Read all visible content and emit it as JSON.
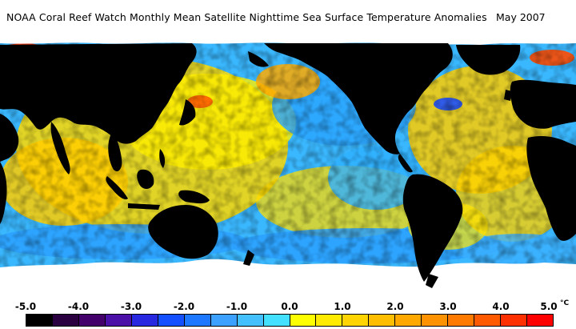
{
  "title": {
    "text": "NOAA Coral Reef Watch Monthly Mean Satellite Nighttime Sea Surface Temperature Anomalies",
    "date": "May 2007"
  },
  "map": {
    "projection": "equirectangular",
    "land_color": "#000000",
    "ice_color": "#ffffff",
    "dominant_features": [
      "warm anomalies (yellow-orange) in North Atlantic and Indian Ocean",
      "cool anomalies (blue) in eastern tropical Pacific and Southern Ocean"
    ]
  },
  "legend": {
    "ticks": [
      "-5.0",
      "-4.0",
      "-3.0",
      "-2.0",
      "-1.0",
      "0.0",
      "1.0",
      "2.0",
      "3.0",
      "4.0",
      "5.0"
    ],
    "unit": "°C",
    "colors": [
      "#000000",
      "#2a0040",
      "#44006a",
      "#4a10a8",
      "#2828e0",
      "#1450ff",
      "#1e78ff",
      "#3ca0ff",
      "#44c0ff",
      "#44e0ff",
      "#ffff00",
      "#ffea00",
      "#ffd400",
      "#ffbe00",
      "#ffa800",
      "#ff9200",
      "#ff7a00",
      "#ff5a00",
      "#ff3000",
      "#ff0000"
    ]
  }
}
